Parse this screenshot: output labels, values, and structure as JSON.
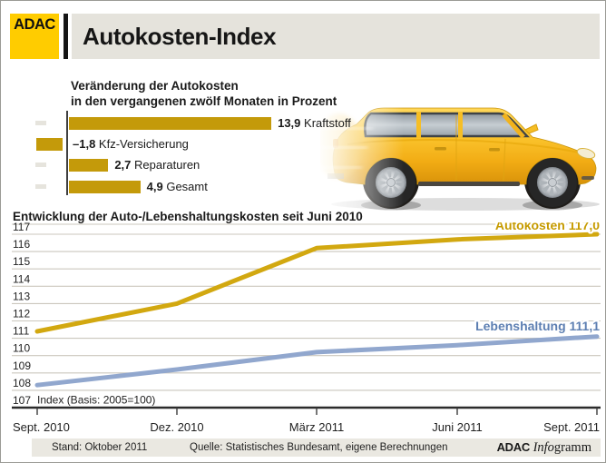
{
  "header": {
    "logo_text": "ADAC",
    "title": "Autokosten-Index"
  },
  "bar_section": {
    "subtitle_line1": "Veränderung der Autokosten",
    "subtitle_line2": "in den vergangenen zwölf Monaten in Prozent"
  },
  "footer": {
    "stand": "Stand: Oktober 2011",
    "quelle": "Quelle: Statistisches Bundesamt, eigene Berechnungen",
    "brand_sans": "ADAC",
    "brand_serif_italic": "Info",
    "brand_serif": "gramm"
  },
  "colors": {
    "adac_yellow": "#FFCC00",
    "band_gray": "#E5E3DC",
    "bar_gold": "#C49A0A",
    "line_gold": "#D2A810",
    "gold_label": "#C69B00",
    "line_blue": "#91A7CE",
    "blue_label": "#5D7FB2",
    "grid": "#CBC7BD",
    "axis_black": "#2B2B2B"
  },
  "chart_data": [
    {
      "type": "bar",
      "title": "Veränderung der Autokosten in den vergangenen zwölf Monaten in Prozent",
      "orientation": "horizontal",
      "categories": [
        "Kraftstoff",
        "Kfz-Versicherung",
        "Reparaturen",
        "Gesamt"
      ],
      "values": [
        13.9,
        -1.8,
        2.7,
        4.9
      ],
      "value_labels": [
        "13,9",
        "–1,8",
        "2,7",
        "4,9"
      ],
      "unit": "Prozent"
    },
    {
      "type": "line",
      "title": "Entwicklung der Auto-/Lebenshaltungskosten seit Juni 2010",
      "x": [
        "Sept. 2010",
        "Dez. 2010",
        "März 2011",
        "Juni 2011",
        "Sept. 2011"
      ],
      "series": [
        {
          "name": "Autokosten",
          "values": [
            111.4,
            113.0,
            116.2,
            116.7,
            117.0
          ],
          "end_label": "Autokosten 117,0"
        },
        {
          "name": "Lebenshaltung",
          "values": [
            108.3,
            109.2,
            110.2,
            110.6,
            111.1
          ],
          "end_label": "Lebenshaltung 111,1"
        }
      ],
      "ylim": [
        107,
        117
      ],
      "yticks": [
        117,
        116,
        115,
        114,
        113,
        112,
        111,
        110,
        109,
        108,
        107
      ],
      "note": "Index (Basis: 2005=100)",
      "grid": true,
      "legend_position": "line-end labels right"
    }
  ]
}
